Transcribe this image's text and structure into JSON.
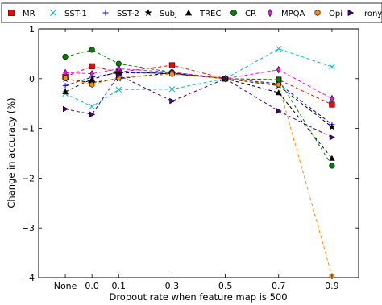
{
  "chart_data": {
    "type": "line",
    "xlabel": "Dropout rate when feature map is 500",
    "ylabel": "Change in accuracy (%)",
    "categories": [
      "None",
      "0.0",
      "0.1",
      "0.3",
      "0.5",
      "0.7",
      "0.9"
    ],
    "x": [
      -0.1,
      0.0,
      0.1,
      0.3,
      0.5,
      0.7,
      0.9
    ],
    "xlim": [
      -0.2,
      1.0
    ],
    "ylim": [
      -4,
      1
    ],
    "yticks": [
      1,
      0,
      -1,
      -2,
      -3,
      -4
    ],
    "ytick_labels": [
      "1",
      "0",
      "−1",
      "−2",
      "−3",
      "−4"
    ],
    "line_style": "dashed",
    "legend_position": "top",
    "series": [
      {
        "name": "MR",
        "color": "#ff0000",
        "marker": "square",
        "values": [
          0.04,
          0.25,
          0.13,
          0.27,
          0.0,
          -0.02,
          -0.52
        ]
      },
      {
        "name": "SST-1",
        "color": "#00bfbf",
        "marker": "x",
        "values": [
          -0.3,
          -0.56,
          -0.22,
          -0.21,
          0.0,
          0.6,
          0.24
        ]
      },
      {
        "name": "SST-2",
        "color": "#0000ff",
        "marker": "plus",
        "values": [
          -0.14,
          0.03,
          0.12,
          0.11,
          0.0,
          -0.1,
          -0.92
        ]
      },
      {
        "name": "Subj",
        "color": "#000000",
        "marker": "star",
        "values": [
          -0.01,
          -0.08,
          0.0,
          0.12,
          0.0,
          -0.14,
          -0.97
        ]
      },
      {
        "name": "TREC",
        "color": "#000000",
        "marker": "triangle",
        "values": [
          -0.26,
          -0.01,
          0.14,
          0.1,
          0.0,
          -0.28,
          -1.6
        ]
      },
      {
        "name": "CR",
        "color": "#008000",
        "marker": "circle",
        "values": [
          0.44,
          0.58,
          0.3,
          0.13,
          0.0,
          -0.02,
          -1.75
        ]
      },
      {
        "name": "MPQA",
        "color": "#ff00ff",
        "marker": "diamond",
        "values": [
          0.12,
          0.1,
          0.2,
          0.13,
          0.0,
          0.18,
          -0.4
        ]
      },
      {
        "name": "Opi",
        "color": "#ff8c00",
        "marker": "hexagon",
        "values": [
          0.01,
          -0.12,
          0.02,
          0.09,
          0.0,
          -0.12,
          -3.97
        ]
      },
      {
        "name": "Irony",
        "color": "#4b0082",
        "marker": "triangle-right",
        "values": [
          -0.61,
          -0.72,
          0.07,
          -0.45,
          0.0,
          -0.65,
          -1.18
        ]
      }
    ]
  }
}
